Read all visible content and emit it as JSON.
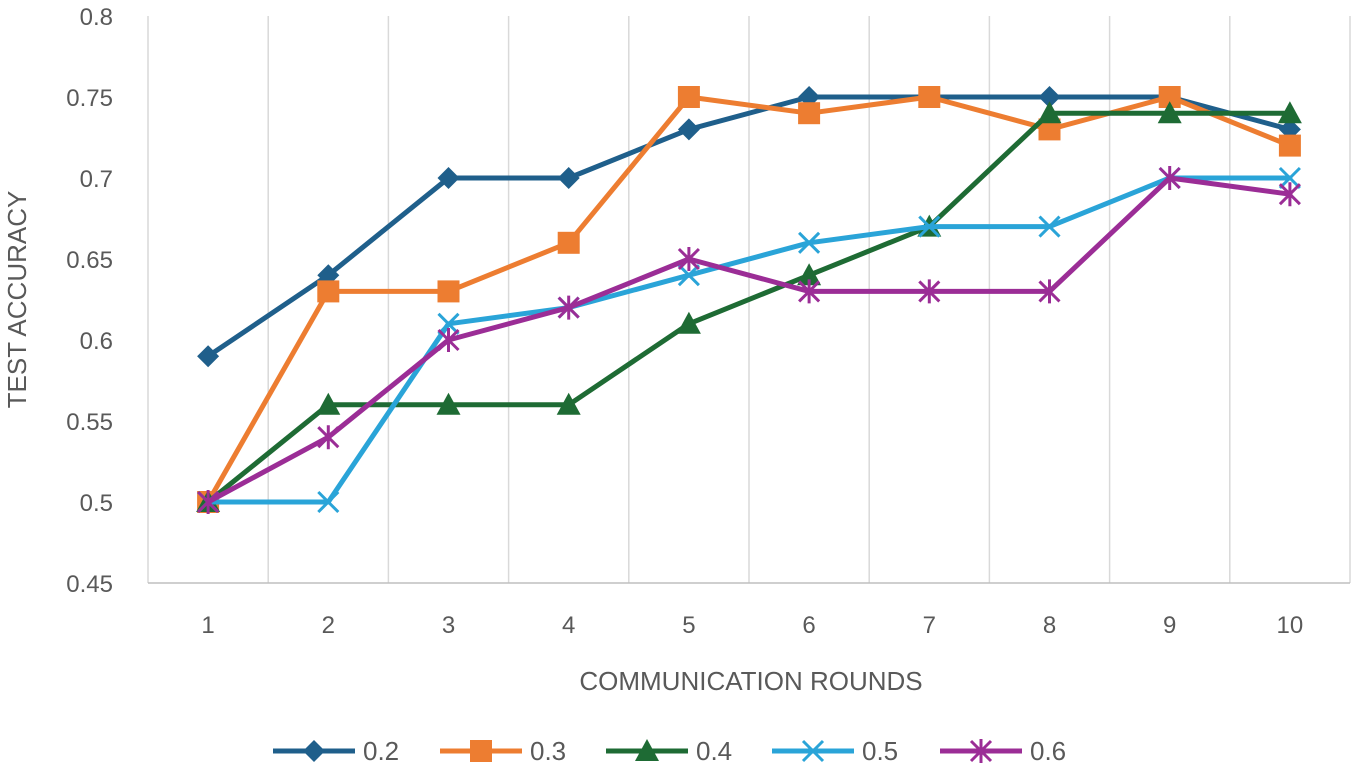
{
  "chart_data": {
    "type": "line",
    "title": "",
    "xlabel": "COMMUNICATION ROUNDS",
    "ylabel": "TEST ACCURACY",
    "categories": [
      "1",
      "2",
      "3",
      "4",
      "5",
      "6",
      "7",
      "8",
      "9",
      "10"
    ],
    "ylim": [
      0.45,
      0.8
    ],
    "yticks": [
      "0.45",
      "0.5",
      "0.55",
      "0.6",
      "0.65",
      "0.7",
      "0.75",
      "0.8"
    ],
    "grid": "vertical",
    "legend_position": "bottom",
    "series": [
      {
        "name": "0.2",
        "color": "#1f5f8b",
        "marker": "diamond",
        "values": [
          0.59,
          0.64,
          0.7,
          0.7,
          0.73,
          0.75,
          0.75,
          0.75,
          0.75,
          0.73
        ]
      },
      {
        "name": "0.3",
        "color": "#ed7d31",
        "marker": "square",
        "values": [
          0.5,
          0.63,
          0.63,
          0.66,
          0.75,
          0.74,
          0.75,
          0.73,
          0.75,
          0.72
        ]
      },
      {
        "name": "0.4",
        "color": "#1e6b34",
        "marker": "triangle",
        "values": [
          0.5,
          0.56,
          0.56,
          0.56,
          0.61,
          0.64,
          0.67,
          0.74,
          0.74,
          0.74
        ]
      },
      {
        "name": "0.5",
        "color": "#2aa4d8",
        "marker": "x",
        "values": [
          0.5,
          0.5,
          0.61,
          0.62,
          0.64,
          0.66,
          0.67,
          0.67,
          0.7,
          0.7
        ]
      },
      {
        "name": "0.6",
        "color": "#9b2d96",
        "marker": "star",
        "values": [
          0.5,
          0.54,
          0.6,
          0.62,
          0.65,
          0.63,
          0.63,
          0.63,
          0.7,
          0.69
        ]
      }
    ]
  }
}
